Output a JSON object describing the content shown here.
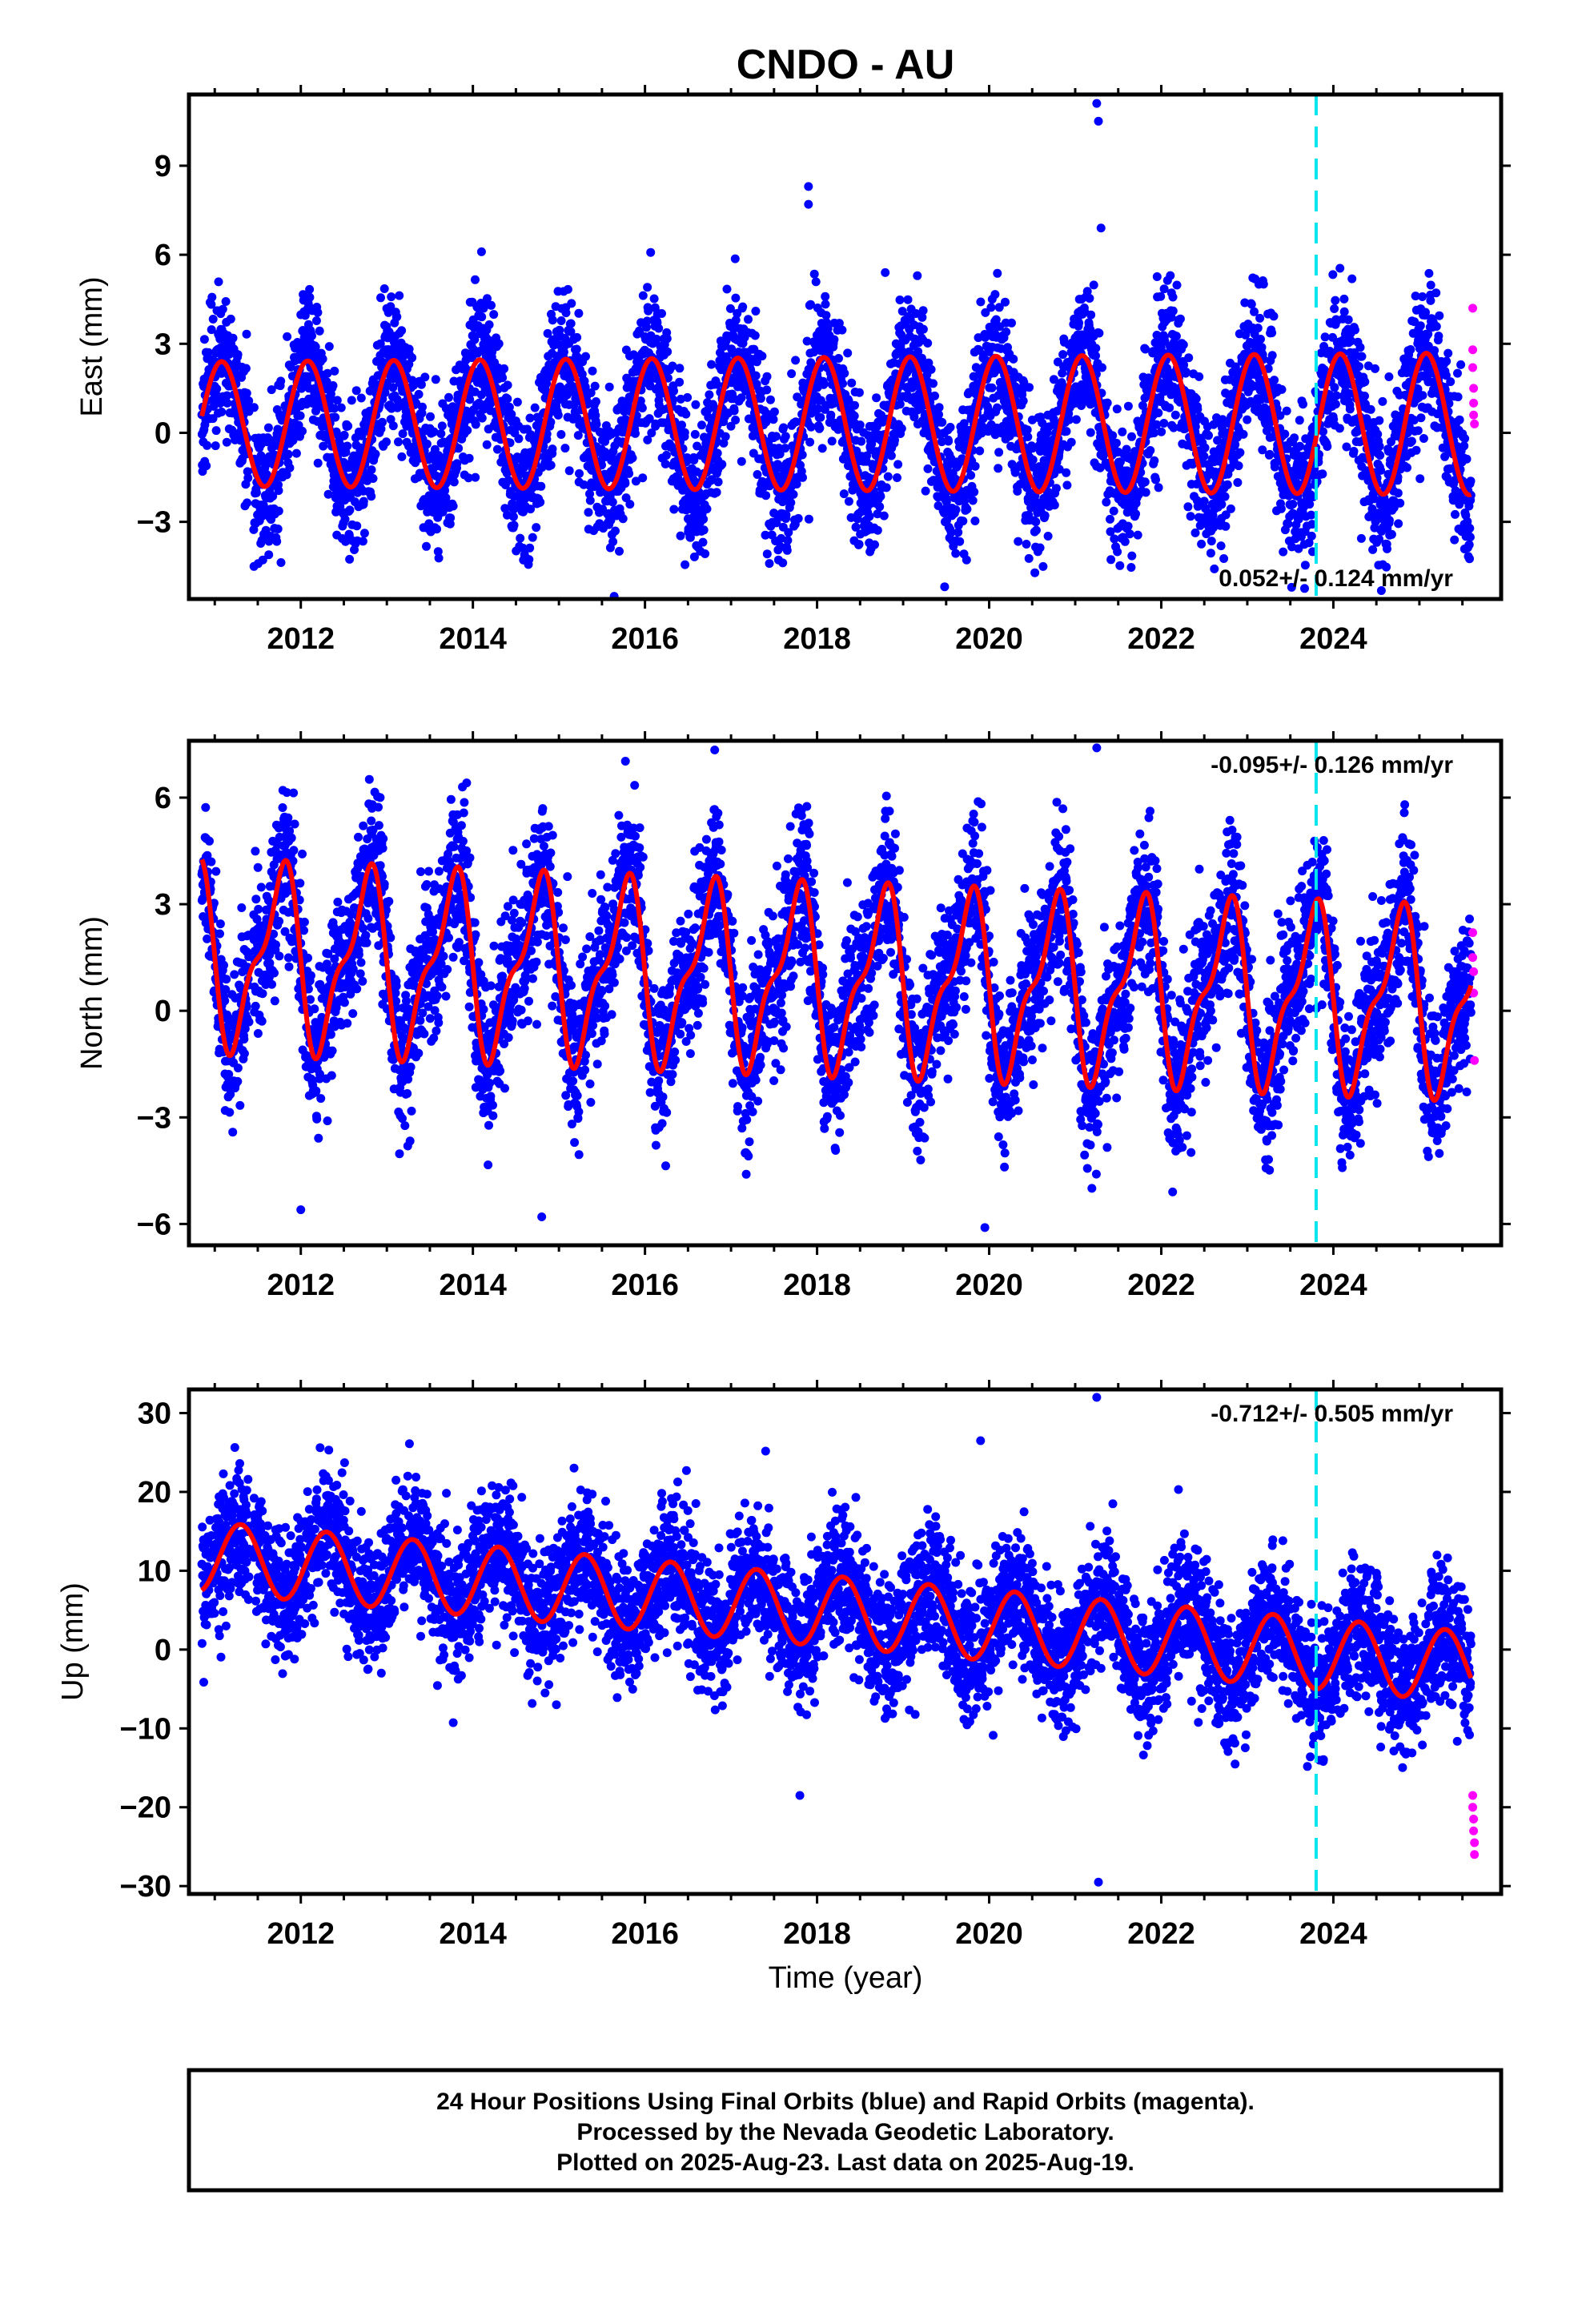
{
  "chart_data": {
    "type": "scatter",
    "title": "CNDO - AU",
    "xlabel": "Time (year)",
    "xlim": [
      2010.7,
      2025.95
    ],
    "xticks": [
      2012,
      2014,
      2016,
      2018,
      2020,
      2022,
      2024
    ],
    "xtick_labels": [
      "2012",
      "2014",
      "2016",
      "2018",
      "2020",
      "2022",
      "2024"
    ],
    "reference_line": {
      "x": 2023.8,
      "style": "dashed",
      "color": "#00e5ee"
    },
    "colors": {
      "final_orbits": "#0000ff",
      "rapid_orbits": "#ff00ff",
      "model_fit": "#ff0000"
    },
    "panels": [
      {
        "ylabel": "East (mm)",
        "ylim": [
          -5.6,
          11.4
        ],
        "yticks": [
          -3,
          0,
          3,
          6,
          9
        ],
        "ytick_labels": [
          "−3",
          "0",
          "3",
          "6",
          "9"
        ],
        "rate_label": "0.052+/- 0.124 mm/yr",
        "rate_position": "bottom-right",
        "model": {
          "offset": 0.3,
          "trend_per_year": 0.0,
          "amp1": 2.1,
          "amp1_growth": 0.02,
          "phase_year": 0.83,
          "amp2": 0.0,
          "phase2_year": 0.0
        },
        "scatter_sigma": 1.2,
        "rapid_points": {
          "x": [
            2025.62,
            2025.62,
            2025.62,
            2025.63,
            2025.63,
            2025.63,
            2025.64
          ],
          "y": [
            4.2,
            2.8,
            2.2,
            1.5,
            1.0,
            0.6,
            0.3
          ]
        },
        "outliers": {
          "x": [
            2021.25,
            2021.27,
            2017.9,
            2017.9,
            2014.1,
            2021.3
          ],
          "y": [
            11.1,
            10.5,
            8.3,
            7.7,
            6.1,
            6.9
          ]
        }
      },
      {
        "ylabel": "North (mm)",
        "ylim": [
          -6.6,
          7.6
        ],
        "yticks": [
          -6,
          -3,
          0,
          3,
          6
        ],
        "ytick_labels": [
          "−6",
          "−3",
          "0",
          "3",
          "6"
        ],
        "rate_label": "-0.095+/- 0.126 mm/yr",
        "rate_position": "top-right",
        "model": {
          "offset": 0.9,
          "trend_per_year": -0.09,
          "amp1": 2.3,
          "amp1_growth": 0.0,
          "phase_year": 0.5,
          "amp2": 0.9,
          "phase2_year": 0.25
        },
        "scatter_sigma": 1.1,
        "rapid_points": {
          "x": [
            2025.62,
            2025.62,
            2025.63,
            2025.63,
            2025.64
          ],
          "y": [
            2.2,
            1.5,
            1.1,
            0.5,
            -1.4
          ]
        },
        "outliers": {
          "x": [
            2021.25,
            2019.95,
            2014.8,
            2012.0
          ],
          "y": [
            7.4,
            -6.1,
            -5.8,
            -5.6
          ]
        }
      },
      {
        "ylabel": "Up (mm)",
        "ylim": [
          -31,
          33
        ],
        "yticks": [
          -30,
          -20,
          -10,
          0,
          10,
          20,
          30
        ],
        "ytick_labels": [
          "−30",
          "−20",
          "−10",
          "0",
          "10",
          "20",
          "30"
        ],
        "rate_label": "-0.712+/- 0.505 mm/yr",
        "rate_position": "top-right",
        "model": {
          "offset": 5.0,
          "trend_per_year": -0.95,
          "amp1": 4.5,
          "amp1_growth": 0.0,
          "phase_year": 0.05,
          "amp2": 0.0,
          "phase2_year": 0.0
        },
        "scatter_sigma": 4.2,
        "rapid_points": {
          "x": [
            2025.62,
            2025.62,
            2025.63,
            2025.63,
            2025.64,
            2025.64
          ],
          "y": [
            -18.5,
            -20.0,
            -21.5,
            -23.0,
            -24.5,
            -26.0
          ]
        },
        "outliers": {
          "x": [
            2021.25,
            2021.27,
            2019.9,
            2011.1,
            2017.8,
            2022.2
          ],
          "y": [
            32,
            -29.5,
            26.5,
            22.3,
            -18.5,
            20.3
          ]
        }
      }
    ]
  },
  "footer": {
    "line1": "24 Hour Positions Using Final Orbits (blue) and Rapid Orbits (magenta).",
    "line2": "Processed by the Nevada Geodetic Laboratory.",
    "line3": "Plotted on 2025-Aug-23. Last data on 2025-Aug-19."
  }
}
